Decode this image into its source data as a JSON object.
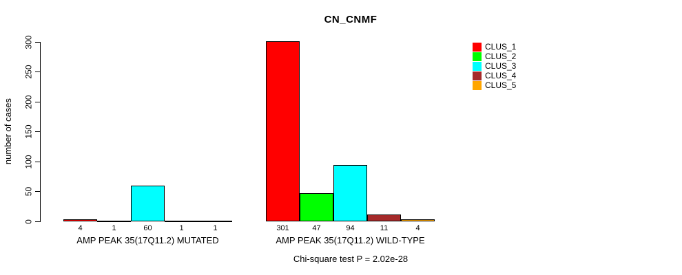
{
  "title": "CN_CNMF",
  "ylabel": "number of cases",
  "footer": "Chi-square test P = 2.02e-28",
  "legend": {
    "items": [
      {
        "label": "CLUS_1",
        "color": "#FF0000"
      },
      {
        "label": "CLUS_2",
        "color": "#00FF00"
      },
      {
        "label": "CLUS_3",
        "color": "#00FFFF"
      },
      {
        "label": "CLUS_4",
        "color": "#A52A2A"
      },
      {
        "label": "CLUS_5",
        "color": "#FFA500"
      }
    ]
  },
  "chart_data": {
    "type": "bar",
    "title": "CN_CNMF",
    "xlabel": "",
    "ylabel": "number of cases",
    "ylim": [
      0,
      300
    ],
    "yticks": [
      0,
      50,
      100,
      150,
      200,
      250,
      300
    ],
    "grid": false,
    "legend_position": "top-right",
    "annotation": "Chi-square test P = 2.02e-28",
    "clusters": [
      "CLUS_1",
      "CLUS_2",
      "CLUS_3",
      "CLUS_4",
      "CLUS_5"
    ],
    "colors": [
      "#FF0000",
      "#00FF00",
      "#00FFFF",
      "#A52A2A",
      "#FFA500"
    ],
    "categories": [
      "AMP PEAK 35(17Q11.2) MUTATED",
      "AMP PEAK 35(17Q11.2) WILD-TYPE"
    ],
    "series": [
      {
        "name": "CLUS_1",
        "values": [
          4,
          301
        ]
      },
      {
        "name": "CLUS_2",
        "values": [
          1,
          47
        ]
      },
      {
        "name": "CLUS_3",
        "values": [
          60,
          94
        ]
      },
      {
        "name": "CLUS_4",
        "values": [
          1,
          11
        ]
      },
      {
        "name": "CLUS_5",
        "values": [
          1,
          4
        ]
      }
    ],
    "groups": [
      {
        "label": "AMP PEAK 35(17Q11.2) MUTATED",
        "values": [
          4,
          1,
          60,
          1,
          1
        ]
      },
      {
        "label": "AMP PEAK 35(17Q11.2) WILD-TYPE",
        "values": [
          301,
          47,
          94,
          11,
          4
        ]
      }
    ]
  }
}
